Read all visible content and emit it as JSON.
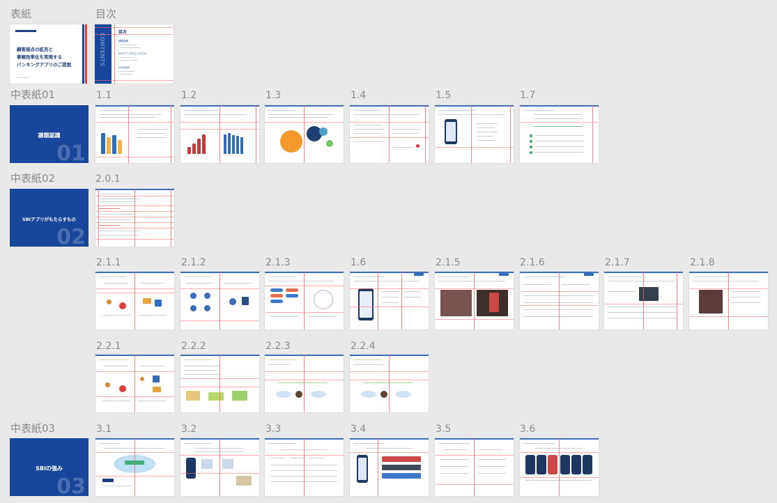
{
  "sections": {
    "cover": "表紙",
    "toc": "目次",
    "div01": "中表紙01",
    "div02": "中表紙02",
    "div03": "中表紙03"
  },
  "cover_slide": {
    "line1": "顧客接点の拡充と",
    "line2": "事務効率化を実現する",
    "line3": "バンキングアプリのご提案"
  },
  "toc_slide": {
    "side": "CONTENTS",
    "title": "目次",
    "items": [
      "課題認識",
      "SBIアプリがもたらすもの",
      "SBIの強み"
    ]
  },
  "dividers": {
    "d01": {
      "title": "課題認識",
      "num": "01"
    },
    "d02": {
      "title": "SBIアプリがもたらすもの",
      "num": "02"
    },
    "d03": {
      "title": "SBIの強み",
      "num": "03"
    }
  },
  "row1_labels": [
    "1.1",
    "1.2",
    "1.3",
    "1.4",
    "1.5",
    "1.7"
  ],
  "row2_labels": [
    "2.0.1"
  ],
  "row3_labels": [
    "2.1.1",
    "2.1.2",
    "2.1.3",
    "1.6",
    "2.1.5",
    "2.1.6",
    "2.1.7",
    "2.1.8"
  ],
  "row4_labels": [
    "2.2.1",
    "2.2.2",
    "2.2.3",
    "2.2.4"
  ],
  "row5_labels": [
    "3.1",
    "3.2",
    "3.3",
    "3.4",
    "3.5",
    "3.6"
  ],
  "colors": {
    "brand_blue": "#17479b",
    "guide_red": "#ff5c5c",
    "background": "#e9e9e9"
  }
}
